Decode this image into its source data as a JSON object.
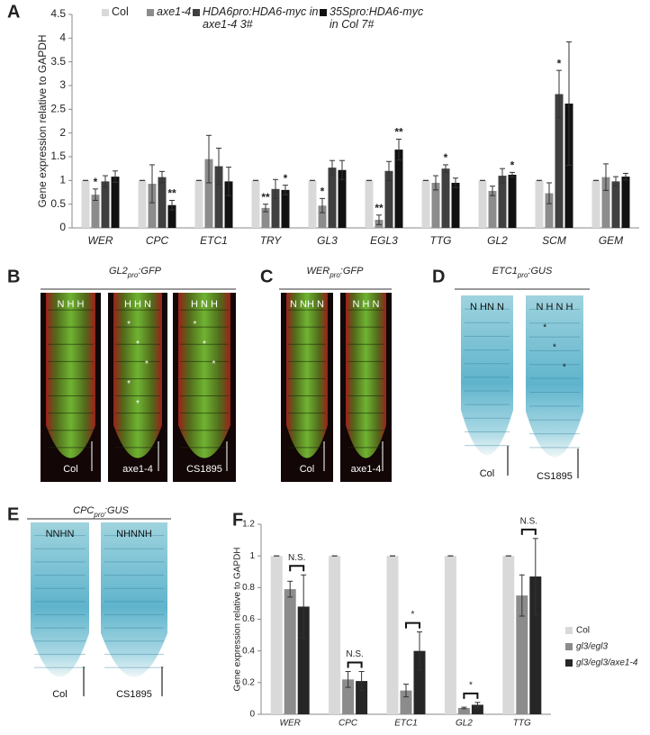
{
  "chart_data": [
    {
      "type": "bar",
      "panel": "A",
      "y_label": "Gene expression relative to GAPDH",
      "categories": [
        "WER",
        "CPC",
        "ETC1",
        "TRY",
        "GL3",
        "EGL3",
        "TTG",
        "GL2",
        "SCM",
        "GEM"
      ],
      "ylim": [
        0,
        4.5
      ],
      "yticks": [
        0,
        0.5,
        1,
        1.5,
        2,
        2.5,
        3,
        3.5,
        4,
        4.5
      ],
      "legend": "top",
      "series": [
        {
          "name": "Col",
          "color": "#d9d9d9",
          "values": [
            1,
            1,
            1,
            1,
            1,
            1,
            1,
            1,
            1,
            1
          ],
          "errors": [
            0,
            0,
            0,
            0,
            0,
            0,
            0,
            0,
            0,
            0
          ]
        },
        {
          "name": "axe1-4",
          "color": "#8c8c8c",
          "values": [
            0.7,
            0.93,
            1.45,
            0.42,
            0.47,
            0.17,
            0.95,
            0.78,
            0.73,
            1.07
          ],
          "errors": [
            0.12,
            0.4,
            0.5,
            0.08,
            0.15,
            0.1,
            0.15,
            0.1,
            0.22,
            0.28
          ],
          "stars": [
            "*",
            null,
            null,
            "**",
            "*",
            "**",
            null,
            null,
            null,
            null
          ]
        },
        {
          "name": "HDA6pro:HDA6-myc in axe1-4 3#",
          "color": "#404040",
          "values": [
            0.98,
            1.07,
            1.3,
            0.82,
            1.27,
            1.2,
            1.25,
            1.1,
            2.82,
            0.98
          ],
          "errors": [
            0.12,
            0.12,
            0.38,
            0.2,
            0.15,
            0.2,
            0.08,
            0.15,
            0.5,
            0.1
          ],
          "stars": [
            null,
            null,
            null,
            null,
            null,
            null,
            "*",
            null,
            "*",
            null
          ]
        },
        {
          "name": "35Spro:HDA6-myc in Col 7#",
          "color": "#111111",
          "values": [
            1.08,
            0.48,
            0.98,
            0.8,
            1.22,
            1.65,
            0.95,
            1.12,
            2.62,
            1.08
          ],
          "errors": [
            0.12,
            0.1,
            0.3,
            0.1,
            0.2,
            0.22,
            0.1,
            0.05,
            1.3,
            0.07
          ],
          "stars": [
            null,
            "**",
            null,
            "*",
            null,
            "**",
            null,
            "*",
            null,
            null
          ]
        }
      ]
    },
    {
      "type": "bar",
      "panel": "F",
      "y_label": "Gene expression relative to GAPDH",
      "categories": [
        "WER",
        "CPC",
        "ETC1",
        "GL2",
        "TTG"
      ],
      "ylim": [
        0,
        1.2
      ],
      "yticks": [
        0,
        0.2,
        0.4,
        0.6,
        0.8,
        1,
        1.2
      ],
      "legend": "right",
      "comparisons": [
        "N.S.",
        "N.S.",
        "*",
        "*",
        "N.S."
      ],
      "series": [
        {
          "name": "Col",
          "color": "#d9d9d9",
          "values": [
            1,
            1,
            1,
            1,
            1
          ],
          "errors": [
            0,
            0,
            0,
            0,
            0
          ]
        },
        {
          "name": "gl3/egl3",
          "color": "#8c8c8c",
          "values": [
            0.79,
            0.22,
            0.15,
            0.04,
            0.75
          ],
          "errors": [
            0.05,
            0.05,
            0.04,
            0.005,
            0.13
          ]
        },
        {
          "name": "gl3/egl3/axe1-4",
          "color": "#262626",
          "values": [
            0.68,
            0.21,
            0.4,
            0.06,
            0.87
          ],
          "errors": [
            0.2,
            0.06,
            0.12,
            0.015,
            0.24
          ]
        }
      ]
    }
  ],
  "image_panels": [
    {
      "letter": "B",
      "title": [
        "GL2",
        "pro",
        ":GFP"
      ],
      "style": "fluor",
      "images": [
        {
          "label": "Col",
          "cells": "N H H"
        },
        {
          "label": "axe1-4",
          "cells": "H H N",
          "stars": [
            "*",
            "*",
            "*",
            "*",
            "*"
          ]
        },
        {
          "label": "CS1895",
          "cells": "H N H",
          "stars": [
            "*",
            "*",
            "*"
          ]
        }
      ]
    },
    {
      "letter": "C",
      "title": [
        "WER",
        "pro",
        ":GFP"
      ],
      "style": "fluor",
      "images": [
        {
          "label": "Col",
          "cells": "N NH N"
        },
        {
          "label": "axe1-4",
          "cells": "N H N"
        }
      ]
    },
    {
      "letter": "D",
      "title": [
        "ETC1",
        "pro",
        ":GUS"
      ],
      "style": "gus",
      "images": [
        {
          "label": "Col",
          "cells": "N HN N"
        },
        {
          "label": "CS1895",
          "cells": "N H N H",
          "stars": [
            "*",
            "*",
            "*"
          ]
        }
      ]
    },
    {
      "letter": "E",
      "title": [
        "CPC",
        "pro",
        ":GUS"
      ],
      "style": "gus",
      "images": [
        {
          "label": "Col",
          "cells": "NNHN"
        },
        {
          "label": "CS1895",
          "cells": "NHNNH"
        }
      ]
    }
  ]
}
